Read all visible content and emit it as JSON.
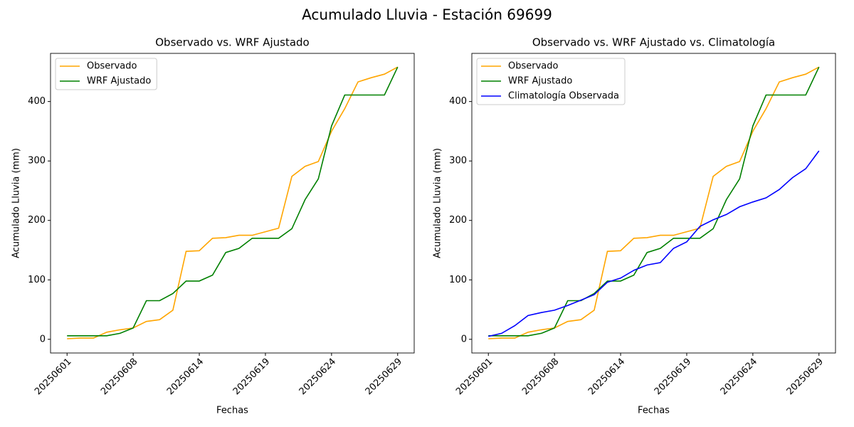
{
  "title": "Acumulado Lluvia - Estación 69699",
  "chart_data": [
    {
      "type": "line",
      "title": "Observado vs. WRF Ajustado",
      "xlabel": "Fechas",
      "ylabel": "Acumulado Lluvia (mm)",
      "categories": [
        "20250601",
        null,
        null,
        null,
        null,
        "20250608",
        null,
        null,
        null,
        null,
        "20250614",
        null,
        null,
        null,
        null,
        "20250619",
        null,
        null,
        null,
        null,
        "20250624",
        null,
        null,
        null,
        null,
        "20250629"
      ],
      "series": [
        {
          "name": "Observado",
          "color": "orange",
          "values": [
            1,
            2,
            2,
            12,
            16,
            19,
            30,
            33,
            49,
            148,
            149,
            170,
            171,
            175,
            175,
            181,
            187,
            274,
            291,
            299,
            350,
            388,
            433,
            440,
            446,
            458
          ]
        },
        {
          "name": "WRF Ajustado",
          "color": "green",
          "values": [
            6,
            6,
            6,
            6,
            10,
            19,
            65,
            65,
            77,
            98,
            98,
            108,
            146,
            153,
            170,
            170,
            170,
            186,
            235,
            270,
            359,
            411,
            411,
            411,
            411,
            458
          ]
        }
      ],
      "xlim": [
        -1.25,
        26.25
      ],
      "ylim": [
        -23,
        481
      ],
      "yticks": [
        0,
        100,
        200,
        300,
        400
      ],
      "legend": "upper left"
    },
    {
      "type": "line",
      "title": "Observado vs. WRF Ajustado vs. Climatología",
      "xlabel": "Fechas",
      "ylabel": "Acumulado Lluvia (mm)",
      "categories": [
        "20250601",
        null,
        null,
        null,
        null,
        "20250608",
        null,
        null,
        null,
        null,
        "20250614",
        null,
        null,
        null,
        null,
        "20250619",
        null,
        null,
        null,
        null,
        "20250624",
        null,
        null,
        null,
        null,
        "20250629"
      ],
      "series": [
        {
          "name": "Observado",
          "color": "orange",
          "values": [
            1,
            2,
            2,
            12,
            16,
            19,
            30,
            33,
            49,
            148,
            149,
            170,
            171,
            175,
            175,
            181,
            187,
            274,
            291,
            299,
            350,
            388,
            433,
            440,
            446,
            458
          ]
        },
        {
          "name": "WRF Ajustado",
          "color": "green",
          "values": [
            6,
            6,
            6,
            6,
            10,
            19,
            65,
            65,
            77,
            98,
            98,
            108,
            146,
            153,
            170,
            170,
            170,
            186,
            235,
            270,
            359,
            411,
            411,
            411,
            411,
            458
          ]
        },
        {
          "name": "Climatología Observada",
          "color": "blue",
          "values": [
            5,
            10,
            23,
            40,
            45,
            49,
            57,
            66,
            75,
            96,
            103,
            116,
            125,
            129,
            153,
            164,
            190,
            201,
            210,
            223,
            231,
            238,
            252,
            272,
            287,
            317
          ]
        }
      ],
      "xlim": [
        -1.25,
        26.25
      ],
      "ylim": [
        -23,
        481
      ],
      "yticks": [
        0,
        100,
        200,
        300,
        400
      ],
      "legend": "upper left"
    }
  ]
}
